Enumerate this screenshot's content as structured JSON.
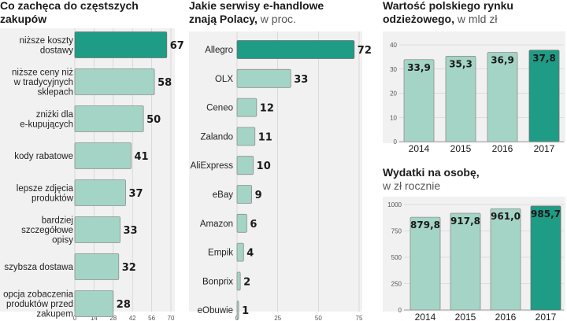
{
  "chart_data": [
    {
      "type": "bar",
      "orientation": "horizontal",
      "title": "Co zachęca do częstszych zakupów",
      "subtitle": "w proc.",
      "categories": [
        "niższe koszty\ndostawy",
        "niższe ceny niż\nw tradycyjnych\nsklepach",
        "zniżki dla\ne-kupujących",
        "kody rabatowe",
        "lepsze zdjęcia\nproduktów",
        "bardziej\nszczegółowe\nopisy",
        "szybsza dostawa",
        "opcja zobaczenia\nproduktów przed\nzakupem"
      ],
      "values": [
        67,
        58,
        50,
        41,
        37,
        33,
        32,
        28
      ],
      "highlight_index": 0,
      "xlim": [
        0,
        70
      ],
      "xticks": [
        "0",
        "14",
        "28",
        "42",
        "56",
        "70"
      ],
      "grid": true
    },
    {
      "type": "bar",
      "orientation": "horizontal",
      "title": "Jakie serwisy e-handlowe znają Polacy,",
      "subtitle": "w proc.",
      "categories": [
        "Allegro",
        "OLX",
        "Ceneo",
        "Zalando",
        "AliExpress",
        "eBay",
        "Amazon",
        "Empik",
        "Bonprix",
        "eObuwie"
      ],
      "values": [
        72,
        33,
        12,
        11,
        10,
        9,
        6,
        4,
        2,
        1
      ],
      "highlight_index": 0,
      "xlim": [
        0,
        75
      ],
      "xticks": [
        "0",
        "25",
        "50",
        "75"
      ],
      "grid": true
    },
    {
      "type": "bar",
      "orientation": "vertical",
      "title": "Wartość polskiego rynku odzieżowego,",
      "subtitle": "w mld zł",
      "categories": [
        "2014",
        "2015",
        "2016",
        "2017"
      ],
      "values": [
        33.9,
        35.3,
        36.9,
        37.8
      ],
      "value_labels": [
        "33,9",
        "35,3",
        "36,9",
        "37,8"
      ],
      "highlight_index": 3,
      "ylim": [
        0,
        40
      ],
      "yticks": [
        "0",
        "10",
        "20",
        "30",
        "40"
      ],
      "grid": true
    },
    {
      "type": "bar",
      "orientation": "vertical",
      "title": "Wydatki na osobę,",
      "subtitle": "w zł rocznie",
      "categories": [
        "2014",
        "2015",
        "2016",
        "2017"
      ],
      "values": [
        879.8,
        917.8,
        961.0,
        985.7
      ],
      "value_labels": [
        "879,8",
        "917,8",
        "961,0",
        "985,7"
      ],
      "highlight_index": 3,
      "ylim": [
        0,
        1000
      ],
      "yticks": [
        "0",
        "250",
        "500",
        "750",
        "1000"
      ],
      "grid": true
    }
  ],
  "colors": {
    "bar": "#a4d4c5",
    "highlight": "#1f9c86",
    "panel": "#f1f1f1"
  }
}
